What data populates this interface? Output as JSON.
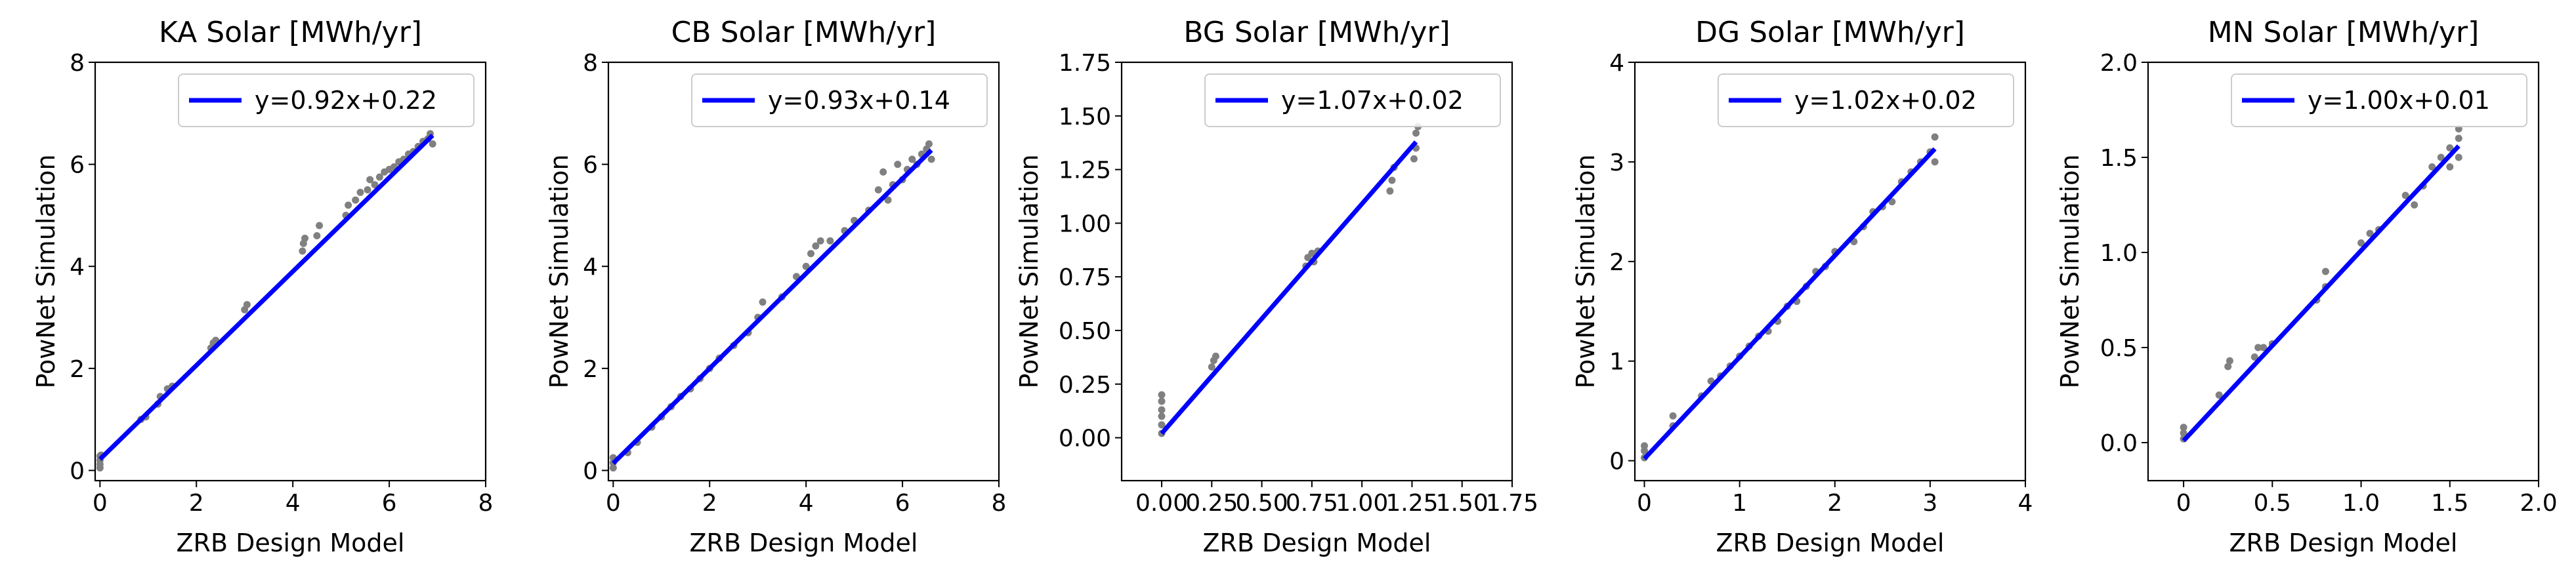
{
  "chart_data": [
    {
      "type": "scatter",
      "title": "KA Solar [MWh/yr]",
      "xlabel": "ZRB Design Model",
      "ylabel": "PowNet Simulation",
      "xlim": [
        -0.1,
        8
      ],
      "ylim": [
        -0.2,
        8
      ],
      "xticks": [
        0,
        2,
        4,
        6,
        8
      ],
      "yticks": [
        0,
        2,
        4,
        6,
        8
      ],
      "tick_labels_x": [
        "0",
        "2",
        "4",
        "6",
        "8"
      ],
      "tick_labels_y": [
        "0",
        "2",
        "4",
        "6",
        "8"
      ],
      "grid": false,
      "legend_position": "upper right",
      "series": [
        {
          "name": "y=0.92x+0.22",
          "kind": "fit-line",
          "color": "#0000ff",
          "x_range": [
            0,
            6.9
          ],
          "slope": 0.92,
          "intercept": 0.22
        },
        {
          "kind": "scatter",
          "color": "#808080",
          "points": [
            [
              0,
              0.05
            ],
            [
              0,
              0.12
            ],
            [
              0,
              0.2
            ],
            [
              0,
              0.28
            ],
            [
              0.02,
              0.3
            ],
            [
              0.85,
              1.0
            ],
            [
              0.95,
              1.05
            ],
            [
              1.2,
              1.3
            ],
            [
              1.25,
              1.45
            ],
            [
              1.4,
              1.6
            ],
            [
              1.5,
              1.65
            ],
            [
              2.3,
              2.4
            ],
            [
              2.35,
              2.5
            ],
            [
              2.4,
              2.55
            ],
            [
              3.0,
              3.15
            ],
            [
              3.05,
              3.25
            ],
            [
              4.2,
              4.3
            ],
            [
              4.22,
              4.45
            ],
            [
              4.25,
              4.55
            ],
            [
              4.5,
              4.6
            ],
            [
              4.55,
              4.8
            ],
            [
              5.1,
              5.0
            ],
            [
              5.15,
              5.2
            ],
            [
              5.3,
              5.3
            ],
            [
              5.4,
              5.45
            ],
            [
              5.55,
              5.5
            ],
            [
              5.6,
              5.7
            ],
            [
              5.7,
              5.6
            ],
            [
              5.8,
              5.75
            ],
            [
              5.9,
              5.85
            ],
            [
              6.0,
              5.9
            ],
            [
              6.1,
              5.95
            ],
            [
              6.2,
              6.05
            ],
            [
              6.3,
              6.1
            ],
            [
              6.4,
              6.2
            ],
            [
              6.5,
              6.25
            ],
            [
              6.6,
              6.35
            ],
            [
              6.7,
              6.45
            ],
            [
              6.8,
              6.5
            ],
            [
              6.85,
              6.6
            ],
            [
              6.9,
              6.4
            ]
          ]
        }
      ]
    },
    {
      "type": "scatter",
      "title": "CB Solar [MWh/yr]",
      "xlabel": "ZRB Design Model",
      "ylabel": "PowNet Simulation",
      "xlim": [
        -0.1,
        8
      ],
      "ylim": [
        -0.2,
        8
      ],
      "xticks": [
        0,
        2,
        4,
        6,
        8
      ],
      "yticks": [
        0,
        2,
        4,
        6,
        8
      ],
      "tick_labels_x": [
        "0",
        "2",
        "4",
        "6",
        "8"
      ],
      "tick_labels_y": [
        "0",
        "2",
        "4",
        "6",
        "8"
      ],
      "grid": false,
      "legend_position": "upper right",
      "series": [
        {
          "name": "y=0.93x+0.14",
          "kind": "fit-line",
          "color": "#0000ff",
          "x_range": [
            0,
            6.6
          ],
          "slope": 0.93,
          "intercept": 0.14
        },
        {
          "kind": "scatter",
          "color": "#808080",
          "points": [
            [
              0,
              0.05
            ],
            [
              0,
              0.15
            ],
            [
              0,
              0.25
            ],
            [
              0.3,
              0.35
            ],
            [
              0.5,
              0.55
            ],
            [
              0.8,
              0.85
            ],
            [
              1.0,
              1.05
            ],
            [
              1.2,
              1.25
            ],
            [
              1.4,
              1.45
            ],
            [
              1.6,
              1.6
            ],
            [
              1.8,
              1.8
            ],
            [
              2.0,
              2.0
            ],
            [
              2.2,
              2.2
            ],
            [
              2.5,
              2.45
            ],
            [
              2.8,
              2.7
            ],
            [
              3.0,
              3.0
            ],
            [
              3.1,
              3.3
            ],
            [
              3.5,
              3.4
            ],
            [
              3.8,
              3.8
            ],
            [
              4.0,
              4.0
            ],
            [
              4.1,
              4.25
            ],
            [
              4.2,
              4.4
            ],
            [
              4.3,
              4.5
            ],
            [
              4.5,
              4.5
            ],
            [
              4.8,
              4.7
            ],
            [
              5.0,
              4.9
            ],
            [
              5.3,
              5.1
            ],
            [
              5.5,
              5.5
            ],
            [
              5.6,
              5.85
            ],
            [
              5.7,
              5.3
            ],
            [
              5.8,
              5.6
            ],
            [
              5.9,
              6.0
            ],
            [
              6.0,
              5.7
            ],
            [
              6.1,
              5.9
            ],
            [
              6.2,
              6.1
            ],
            [
              6.3,
              6.0
            ],
            [
              6.4,
              6.2
            ],
            [
              6.5,
              6.3
            ],
            [
              6.55,
              6.4
            ],
            [
              6.6,
              6.1
            ]
          ]
        }
      ]
    },
    {
      "type": "scatter",
      "title": "BG Solar [MWh/yr]",
      "xlabel": "ZRB Design Model",
      "ylabel": "PowNet Simulation",
      "xlim": [
        -0.2,
        1.75
      ],
      "ylim": [
        -0.2,
        1.75
      ],
      "xticks": [
        0,
        0.25,
        0.5,
        0.75,
        1.0,
        1.25,
        1.5,
        1.75
      ],
      "yticks": [
        0,
        0.25,
        0.5,
        0.75,
        1.0,
        1.25,
        1.5,
        1.75
      ],
      "tick_labels_x": [
        "0.00",
        "0.25",
        "0.50",
        "0.75",
        "1.00",
        "1.25",
        "1.50",
        "1.75"
      ],
      "tick_labels_y": [
        "0.00",
        "0.25",
        "0.50",
        "0.75",
        "1.00",
        "1.25",
        "1.50",
        "1.75"
      ],
      "grid": false,
      "legend_position": "upper right",
      "series": [
        {
          "name": "y=1.07x+0.02",
          "kind": "fit-line",
          "color": "#0000ff",
          "x_range": [
            0,
            1.27
          ],
          "slope": 1.07,
          "intercept": 0.02
        },
        {
          "kind": "scatter",
          "color": "#808080",
          "points": [
            [
              0,
              0.02
            ],
            [
              0,
              0.06
            ],
            [
              0,
              0.1
            ],
            [
              0,
              0.13
            ],
            [
              0,
              0.17
            ],
            [
              0,
              0.2
            ],
            [
              0.25,
              0.33
            ],
            [
              0.26,
              0.36
            ],
            [
              0.27,
              0.38
            ],
            [
              0.72,
              0.8
            ],
            [
              0.73,
              0.84
            ],
            [
              0.75,
              0.86
            ],
            [
              0.76,
              0.82
            ],
            [
              0.78,
              0.87
            ],
            [
              1.14,
              1.15
            ],
            [
              1.15,
              1.2
            ],
            [
              1.16,
              1.26
            ],
            [
              1.26,
              1.3
            ],
            [
              1.27,
              1.35
            ],
            [
              1.27,
              1.42
            ],
            [
              1.28,
              1.45
            ]
          ]
        }
      ]
    },
    {
      "type": "scatter",
      "title": "DG Solar [MWh/yr]",
      "xlabel": "ZRB Design Model",
      "ylabel": "PowNet Simulation",
      "xlim": [
        -0.1,
        4
      ],
      "ylim": [
        -0.2,
        4
      ],
      "xticks": [
        0,
        1,
        2,
        3,
        4
      ],
      "yticks": [
        0,
        1,
        2,
        3,
        4
      ],
      "tick_labels_x": [
        "0",
        "1",
        "2",
        "3",
        "4"
      ],
      "tick_labels_y": [
        "0",
        "1",
        "2",
        "3",
        "4"
      ],
      "grid": false,
      "legend_position": "upper right",
      "series": [
        {
          "name": "y=1.02x+0.02",
          "kind": "fit-line",
          "color": "#0000ff",
          "x_range": [
            0,
            3.05
          ],
          "slope": 1.02,
          "intercept": 0.02
        },
        {
          "kind": "scatter",
          "color": "#808080",
          "points": [
            [
              0,
              0.03
            ],
            [
              0,
              0.1
            ],
            [
              0,
              0.15
            ],
            [
              0.3,
              0.35
            ],
            [
              0.3,
              0.45
            ],
            [
              0.6,
              0.65
            ],
            [
              0.7,
              0.8
            ],
            [
              0.8,
              0.85
            ],
            [
              0.9,
              0.95
            ],
            [
              1.0,
              1.05
            ],
            [
              1.1,
              1.15
            ],
            [
              1.2,
              1.25
            ],
            [
              1.3,
              1.3
            ],
            [
              1.4,
              1.4
            ],
            [
              1.5,
              1.55
            ],
            [
              1.6,
              1.6
            ],
            [
              1.7,
              1.75
            ],
            [
              1.8,
              1.9
            ],
            [
              1.9,
              1.95
            ],
            [
              2.0,
              2.1
            ],
            [
              2.2,
              2.2
            ],
            [
              2.3,
              2.35
            ],
            [
              2.4,
              2.5
            ],
            [
              2.5,
              2.55
            ],
            [
              2.6,
              2.6
            ],
            [
              2.7,
              2.8
            ],
            [
              2.8,
              2.9
            ],
            [
              2.9,
              3.0
            ],
            [
              3.0,
              3.1
            ],
            [
              3.05,
              3.25
            ],
            [
              3.05,
              3.0
            ]
          ]
        }
      ]
    },
    {
      "type": "scatter",
      "title": "MN Solar [MWh/yr]",
      "xlabel": "ZRB Design Model",
      "ylabel": "PowNet Simulation",
      "xlim": [
        -0.2,
        2.0
      ],
      "ylim": [
        -0.2,
        2.0
      ],
      "xticks": [
        0,
        0.5,
        1.0,
        1.5,
        2.0
      ],
      "yticks": [
        0,
        0.5,
        1.0,
        1.5,
        2.0
      ],
      "tick_labels_x": [
        "0",
        "0.5",
        "1.0",
        "1.5",
        "2.0"
      ],
      "tick_labels_y": [
        "0.0",
        "0.5",
        "1.0",
        "1.5",
        "2.0"
      ],
      "grid": false,
      "legend_position": "upper right",
      "series": [
        {
          "name": "y=1.00x+0.01",
          "kind": "fit-line",
          "color": "#0000ff",
          "x_range": [
            0,
            1.55
          ],
          "slope": 1.0,
          "intercept": 0.01
        },
        {
          "kind": "scatter",
          "color": "#808080",
          "points": [
            [
              0,
              0.02
            ],
            [
              0,
              0.05
            ],
            [
              0,
              0.08
            ],
            [
              0.2,
              0.25
            ],
            [
              0.25,
              0.4
            ],
            [
              0.26,
              0.43
            ],
            [
              0.4,
              0.45
            ],
            [
              0.42,
              0.5
            ],
            [
              0.45,
              0.5
            ],
            [
              0.5,
              0.52
            ],
            [
              0.75,
              0.75
            ],
            [
              0.8,
              0.82
            ],
            [
              0.8,
              0.9
            ],
            [
              1.0,
              1.05
            ],
            [
              1.05,
              1.1
            ],
            [
              1.1,
              1.12
            ],
            [
              1.25,
              1.3
            ],
            [
              1.3,
              1.25
            ],
            [
              1.35,
              1.35
            ],
            [
              1.4,
              1.45
            ],
            [
              1.45,
              1.5
            ],
            [
              1.5,
              1.55
            ],
            [
              1.5,
              1.45
            ],
            [
              1.55,
              1.6
            ],
            [
              1.55,
              1.65
            ],
            [
              1.55,
              1.5
            ]
          ]
        }
      ]
    }
  ]
}
